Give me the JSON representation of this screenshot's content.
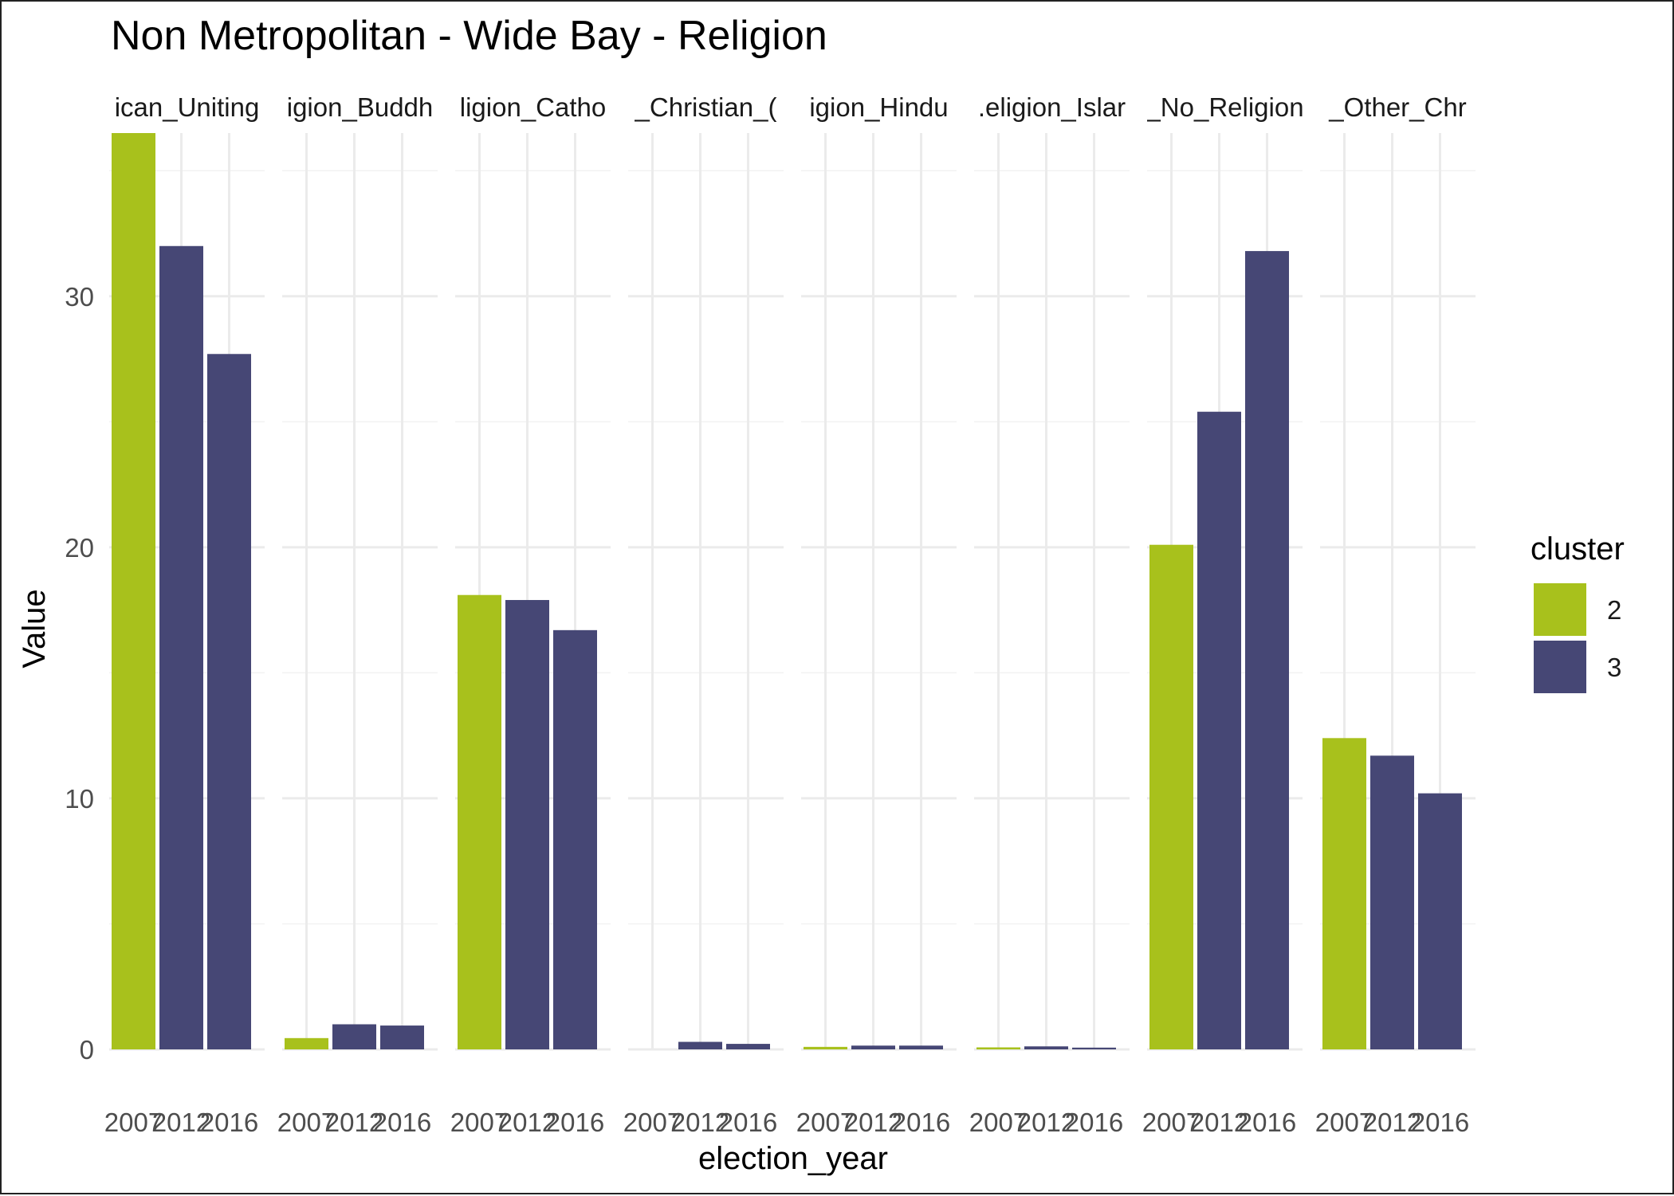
{
  "chart_data": {
    "type": "bar",
    "title": "Non Metropolitan - Wide Bay - Religion",
    "xlabel": "election_year",
    "ylabel": "Value",
    "ylim": [
      0,
      36.5
    ],
    "yticks": [
      0,
      10,
      20,
      30
    ],
    "grid": true,
    "legend": {
      "title": "cluster",
      "position": "right",
      "entries": [
        {
          "label": "2",
          "color": "#a8c11c"
        },
        {
          "label": "3",
          "color": "#464775"
        }
      ]
    },
    "x": [
      "2007",
      "2012",
      "2016"
    ],
    "cluster_by_year": [
      "2",
      "3",
      "3"
    ],
    "panels": [
      {
        "label": "ican_Uniting",
        "values": [
          36.5,
          32.0,
          27.7
        ]
      },
      {
        "label": "igion_Buddh",
        "values": [
          0.45,
          1.0,
          0.95
        ]
      },
      {
        "label": "ligion_Catho",
        "values": [
          18.1,
          17.9,
          16.7
        ]
      },
      {
        "label": "_Christian_(",
        "values": [
          0.0,
          0.3,
          0.22
        ]
      },
      {
        "label": "igion_Hindu",
        "values": [
          0.1,
          0.15,
          0.15
        ]
      },
      {
        "label": ".eligion_Islar",
        "values": [
          0.08,
          0.12,
          0.07
        ]
      },
      {
        "label": "_No_Religion",
        "values": [
          20.1,
          25.4,
          31.8
        ]
      },
      {
        "label": "_Other_Chr",
        "values": [
          12.4,
          11.7,
          10.2
        ]
      }
    ]
  }
}
